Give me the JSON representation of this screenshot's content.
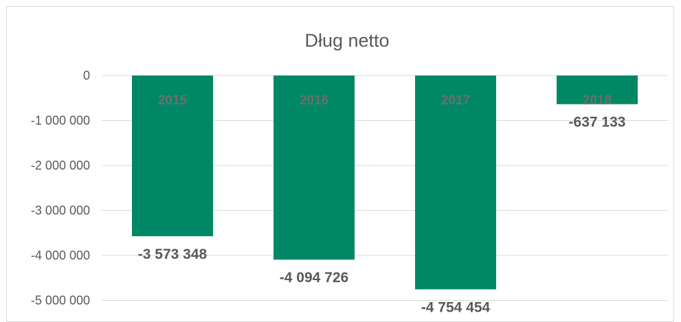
{
  "chart_data": {
    "type": "bar",
    "title": "Dług netto",
    "xlabel": "",
    "ylabel": "",
    "categories": [
      "2015",
      "2016",
      "2017",
      "2018"
    ],
    "values": [
      -3573348,
      -4094726,
      -4754454,
      -637133
    ],
    "data_labels": [
      "-3 573 348",
      "-4 094 726",
      "-4 754 454",
      "-637 133"
    ],
    "y_ticks": [
      {
        "value": 0,
        "label": "0"
      },
      {
        "value": -1000000,
        "label": "-1 000 000"
      },
      {
        "value": -2000000,
        "label": "-2 000 000"
      },
      {
        "value": -3000000,
        "label": "-3 000 000"
      },
      {
        "value": -4000000,
        "label": "-4 000 000"
      },
      {
        "value": -5000000,
        "label": "-5 000 000"
      }
    ],
    "ylim": [
      -5000000,
      0
    ],
    "grid": true,
    "legend": "none",
    "bar_color": "#008866"
  }
}
